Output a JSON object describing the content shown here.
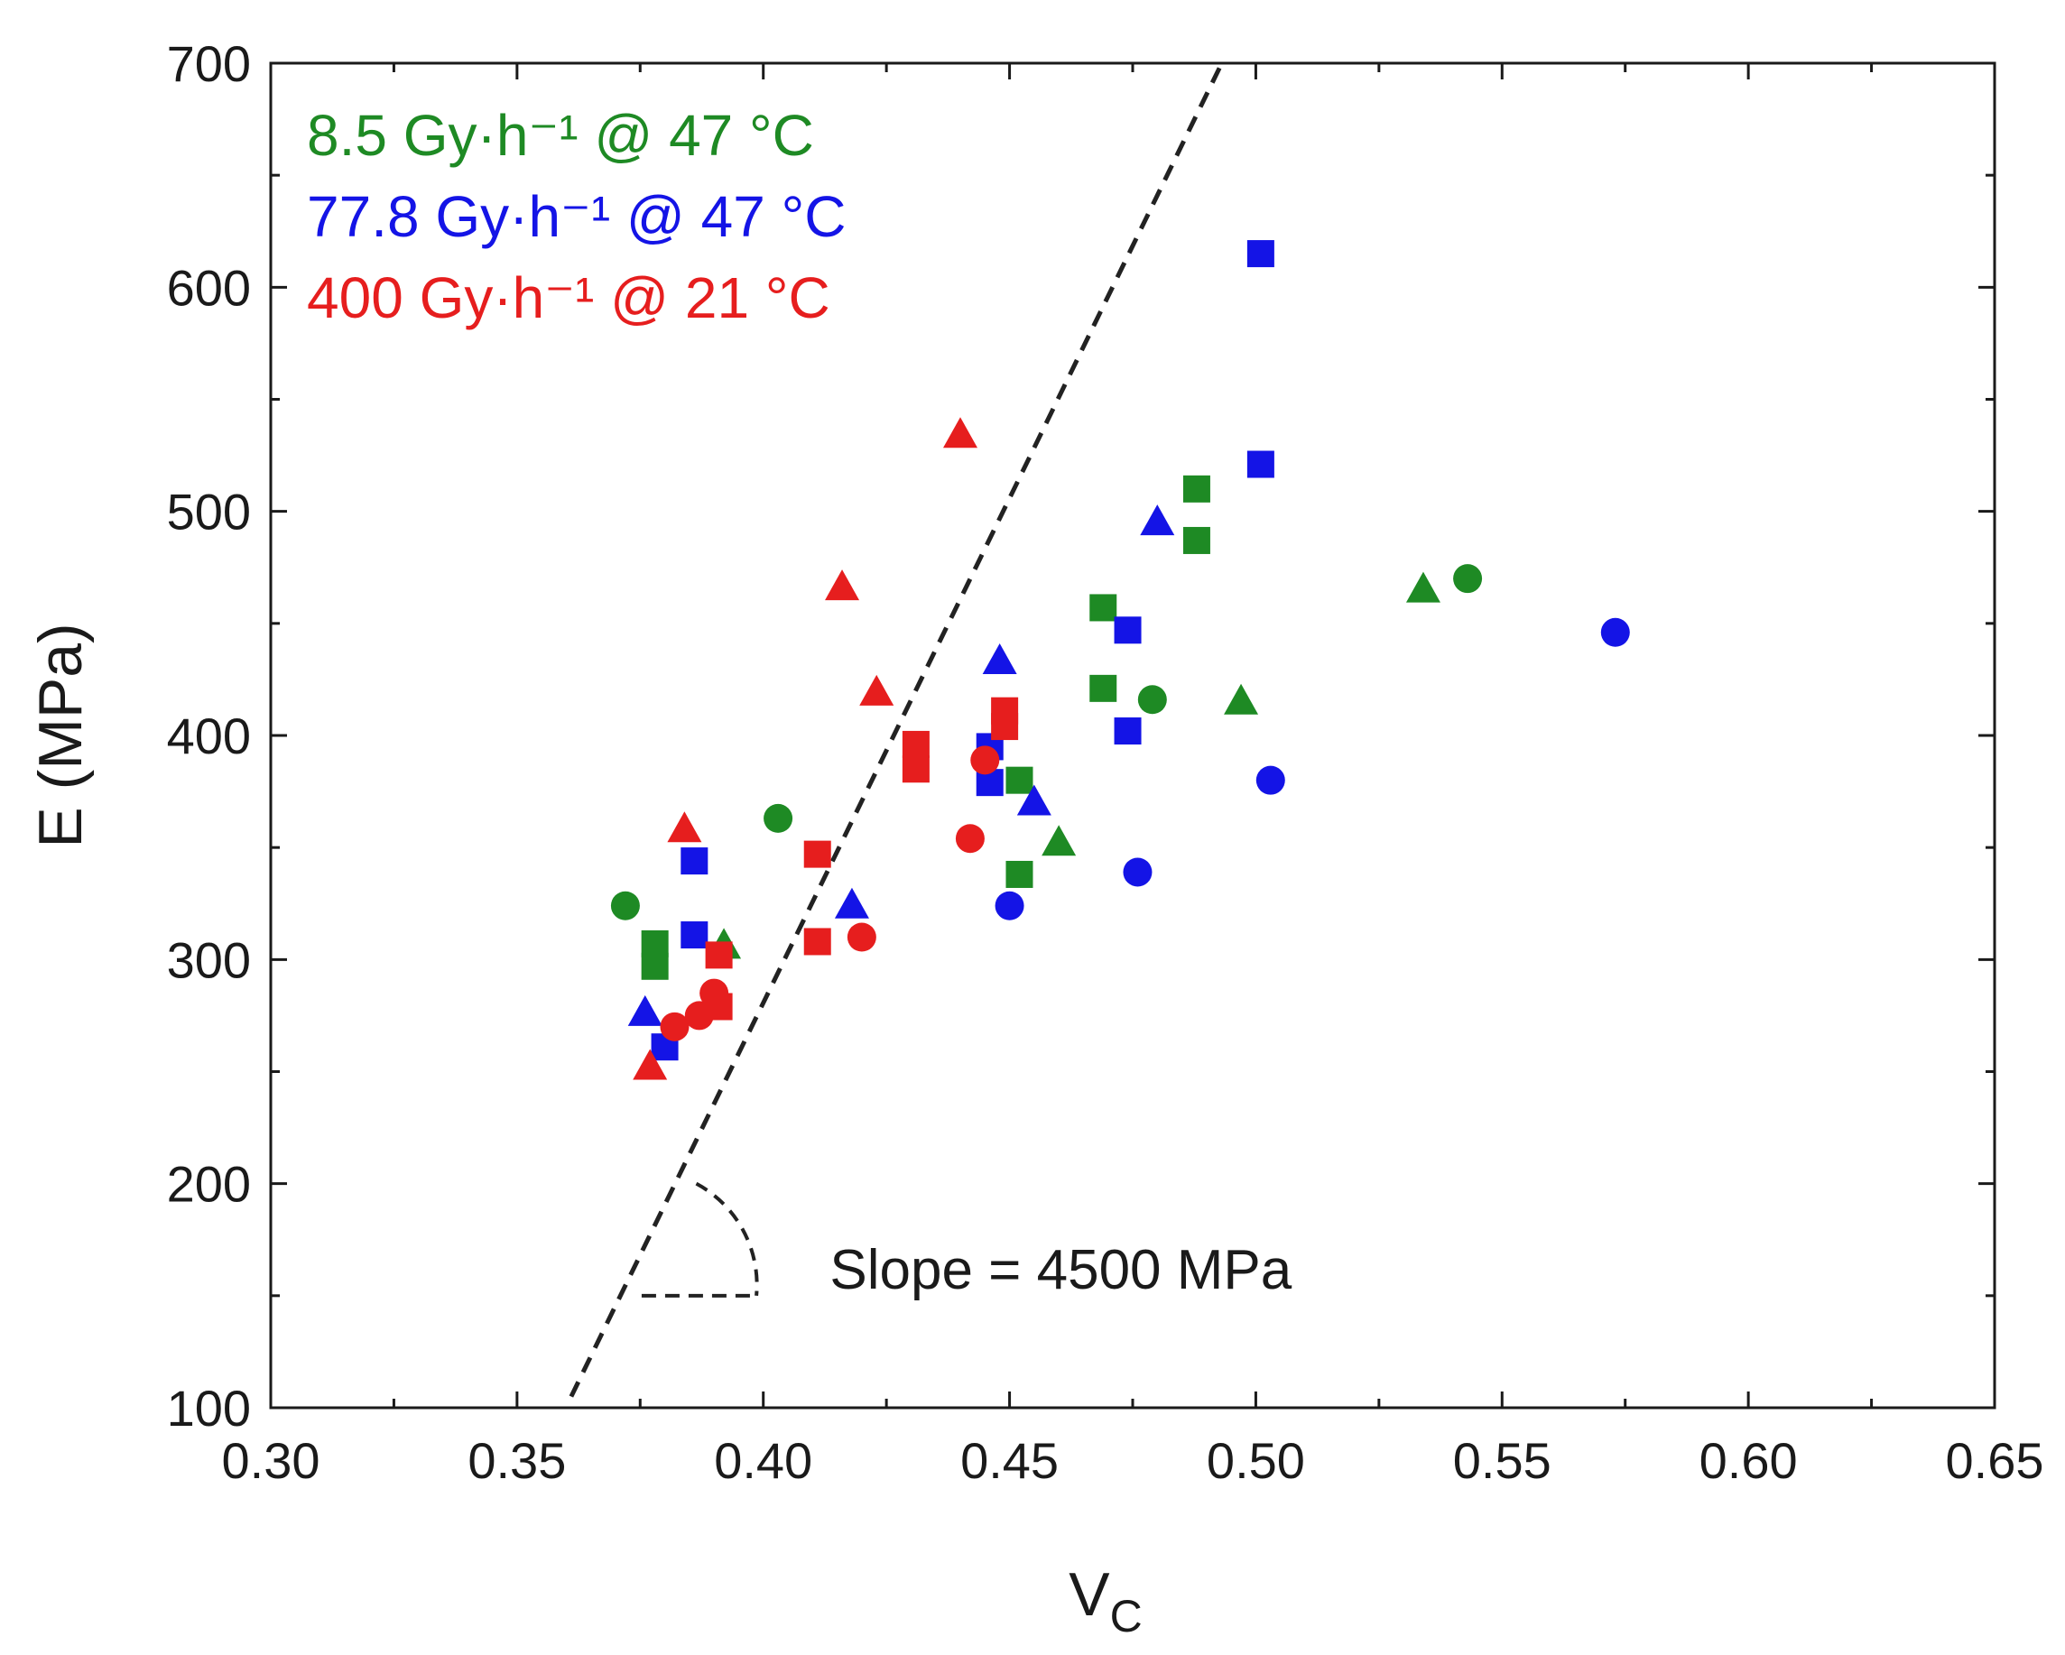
{
  "chart_data": {
    "type": "scatter",
    "xlabel": "V",
    "xlabel_sub": "C",
    "ylabel": "E (MPa)",
    "xlim": [
      0.3,
      0.65
    ],
    "ylim": [
      100,
      700
    ],
    "xticks": [
      "0.30",
      "0.35",
      "0.40",
      "0.45",
      "0.50",
      "0.55",
      "0.60",
      "0.65"
    ],
    "xtick_values": [
      0.3,
      0.35,
      0.4,
      0.45,
      0.5,
      0.55,
      0.6,
      0.65
    ],
    "yticks": [
      "100",
      "200",
      "300",
      "400",
      "500",
      "600",
      "700"
    ],
    "ytick_values": [
      100,
      200,
      300,
      400,
      500,
      600,
      700
    ],
    "grid": false,
    "legend_position": "top-left",
    "series": [
      {
        "name": "8.5 Gy·h⁻¹ @ 47 °C",
        "color": "#1e8a24",
        "points": [
          {
            "x": 0.372,
            "y": 324,
            "marker": "circle"
          },
          {
            "x": 0.378,
            "y": 307,
            "marker": "square"
          },
          {
            "x": 0.378,
            "y": 297,
            "marker": "square"
          },
          {
            "x": 0.392,
            "y": 306,
            "marker": "triangle"
          },
          {
            "x": 0.403,
            "y": 363,
            "marker": "circle"
          },
          {
            "x": 0.452,
            "y": 380,
            "marker": "square"
          },
          {
            "x": 0.452,
            "y": 338,
            "marker": "square"
          },
          {
            "x": 0.46,
            "y": 352,
            "marker": "triangle"
          },
          {
            "x": 0.469,
            "y": 457,
            "marker": "square"
          },
          {
            "x": 0.469,
            "y": 421,
            "marker": "square"
          },
          {
            "x": 0.479,
            "y": 416,
            "marker": "circle"
          },
          {
            "x": 0.488,
            "y": 510,
            "marker": "square"
          },
          {
            "x": 0.488,
            "y": 487,
            "marker": "square"
          },
          {
            "x": 0.497,
            "y": 415,
            "marker": "triangle"
          },
          {
            "x": 0.534,
            "y": 465,
            "marker": "triangle"
          },
          {
            "x": 0.543,
            "y": 470,
            "marker": "circle"
          }
        ]
      },
      {
        "name": "77.8 Gy·h⁻¹ @ 47 °C",
        "color": "#1414e6",
        "points": [
          {
            "x": 0.376,
            "y": 276,
            "marker": "triangle"
          },
          {
            "x": 0.38,
            "y": 261,
            "marker": "square"
          },
          {
            "x": 0.386,
            "y": 344,
            "marker": "square"
          },
          {
            "x": 0.386,
            "y": 311,
            "marker": "square"
          },
          {
            "x": 0.418,
            "y": 324,
            "marker": "triangle"
          },
          {
            "x": 0.446,
            "y": 395,
            "marker": "square"
          },
          {
            "x": 0.446,
            "y": 379,
            "marker": "square"
          },
          {
            "x": 0.448,
            "y": 433,
            "marker": "triangle"
          },
          {
            "x": 0.45,
            "y": 324,
            "marker": "circle"
          },
          {
            "x": 0.455,
            "y": 370,
            "marker": "triangle"
          },
          {
            "x": 0.474,
            "y": 447,
            "marker": "square"
          },
          {
            "x": 0.474,
            "y": 402,
            "marker": "square"
          },
          {
            "x": 0.476,
            "y": 339,
            "marker": "circle"
          },
          {
            "x": 0.48,
            "y": 495,
            "marker": "triangle"
          },
          {
            "x": 0.501,
            "y": 615,
            "marker": "square"
          },
          {
            "x": 0.501,
            "y": 521,
            "marker": "square"
          },
          {
            "x": 0.503,
            "y": 380,
            "marker": "circle"
          },
          {
            "x": 0.573,
            "y": 446,
            "marker": "circle"
          }
        ]
      },
      {
        "name": "400 Gy·h⁻¹ @ 21 °C",
        "color": "#e61e1e",
        "points": [
          {
            "x": 0.377,
            "y": 252,
            "marker": "triangle"
          },
          {
            "x": 0.382,
            "y": 270,
            "marker": "circle"
          },
          {
            "x": 0.384,
            "y": 358,
            "marker": "triangle"
          },
          {
            "x": 0.387,
            "y": 275,
            "marker": "circle"
          },
          {
            "x": 0.39,
            "y": 285,
            "marker": "circle"
          },
          {
            "x": 0.391,
            "y": 302,
            "marker": "square"
          },
          {
            "x": 0.391,
            "y": 279,
            "marker": "square"
          },
          {
            "x": 0.411,
            "y": 347,
            "marker": "square"
          },
          {
            "x": 0.411,
            "y": 308,
            "marker": "square"
          },
          {
            "x": 0.416,
            "y": 466,
            "marker": "triangle"
          },
          {
            "x": 0.42,
            "y": 310,
            "marker": "circle"
          },
          {
            "x": 0.423,
            "y": 419,
            "marker": "triangle"
          },
          {
            "x": 0.431,
            "y": 396,
            "marker": "square"
          },
          {
            "x": 0.431,
            "y": 385,
            "marker": "square"
          },
          {
            "x": 0.44,
            "y": 534,
            "marker": "triangle"
          },
          {
            "x": 0.442,
            "y": 354,
            "marker": "circle"
          },
          {
            "x": 0.445,
            "y": 389,
            "marker": "circle"
          },
          {
            "x": 0.449,
            "y": 411,
            "marker": "square"
          },
          {
            "x": 0.449,
            "y": 404,
            "marker": "square"
          }
        ]
      }
    ],
    "fit_line": {
      "style": "dashed",
      "color": "#222222",
      "x": [
        0.361,
        0.4931
      ],
      "y": [
        105,
        700
      ]
    },
    "slope_indicator": {
      "vertex": {
        "x": 0.3753,
        "y": 150
      },
      "top": {
        "x": 0.3864,
        "y": 200
      },
      "right": {
        "x": 0.3986,
        "y": 150
      }
    },
    "annotations": [
      {
        "text": "Slope = 4500 MPa",
        "x": 0.4135,
        "y": 162
      }
    ]
  }
}
